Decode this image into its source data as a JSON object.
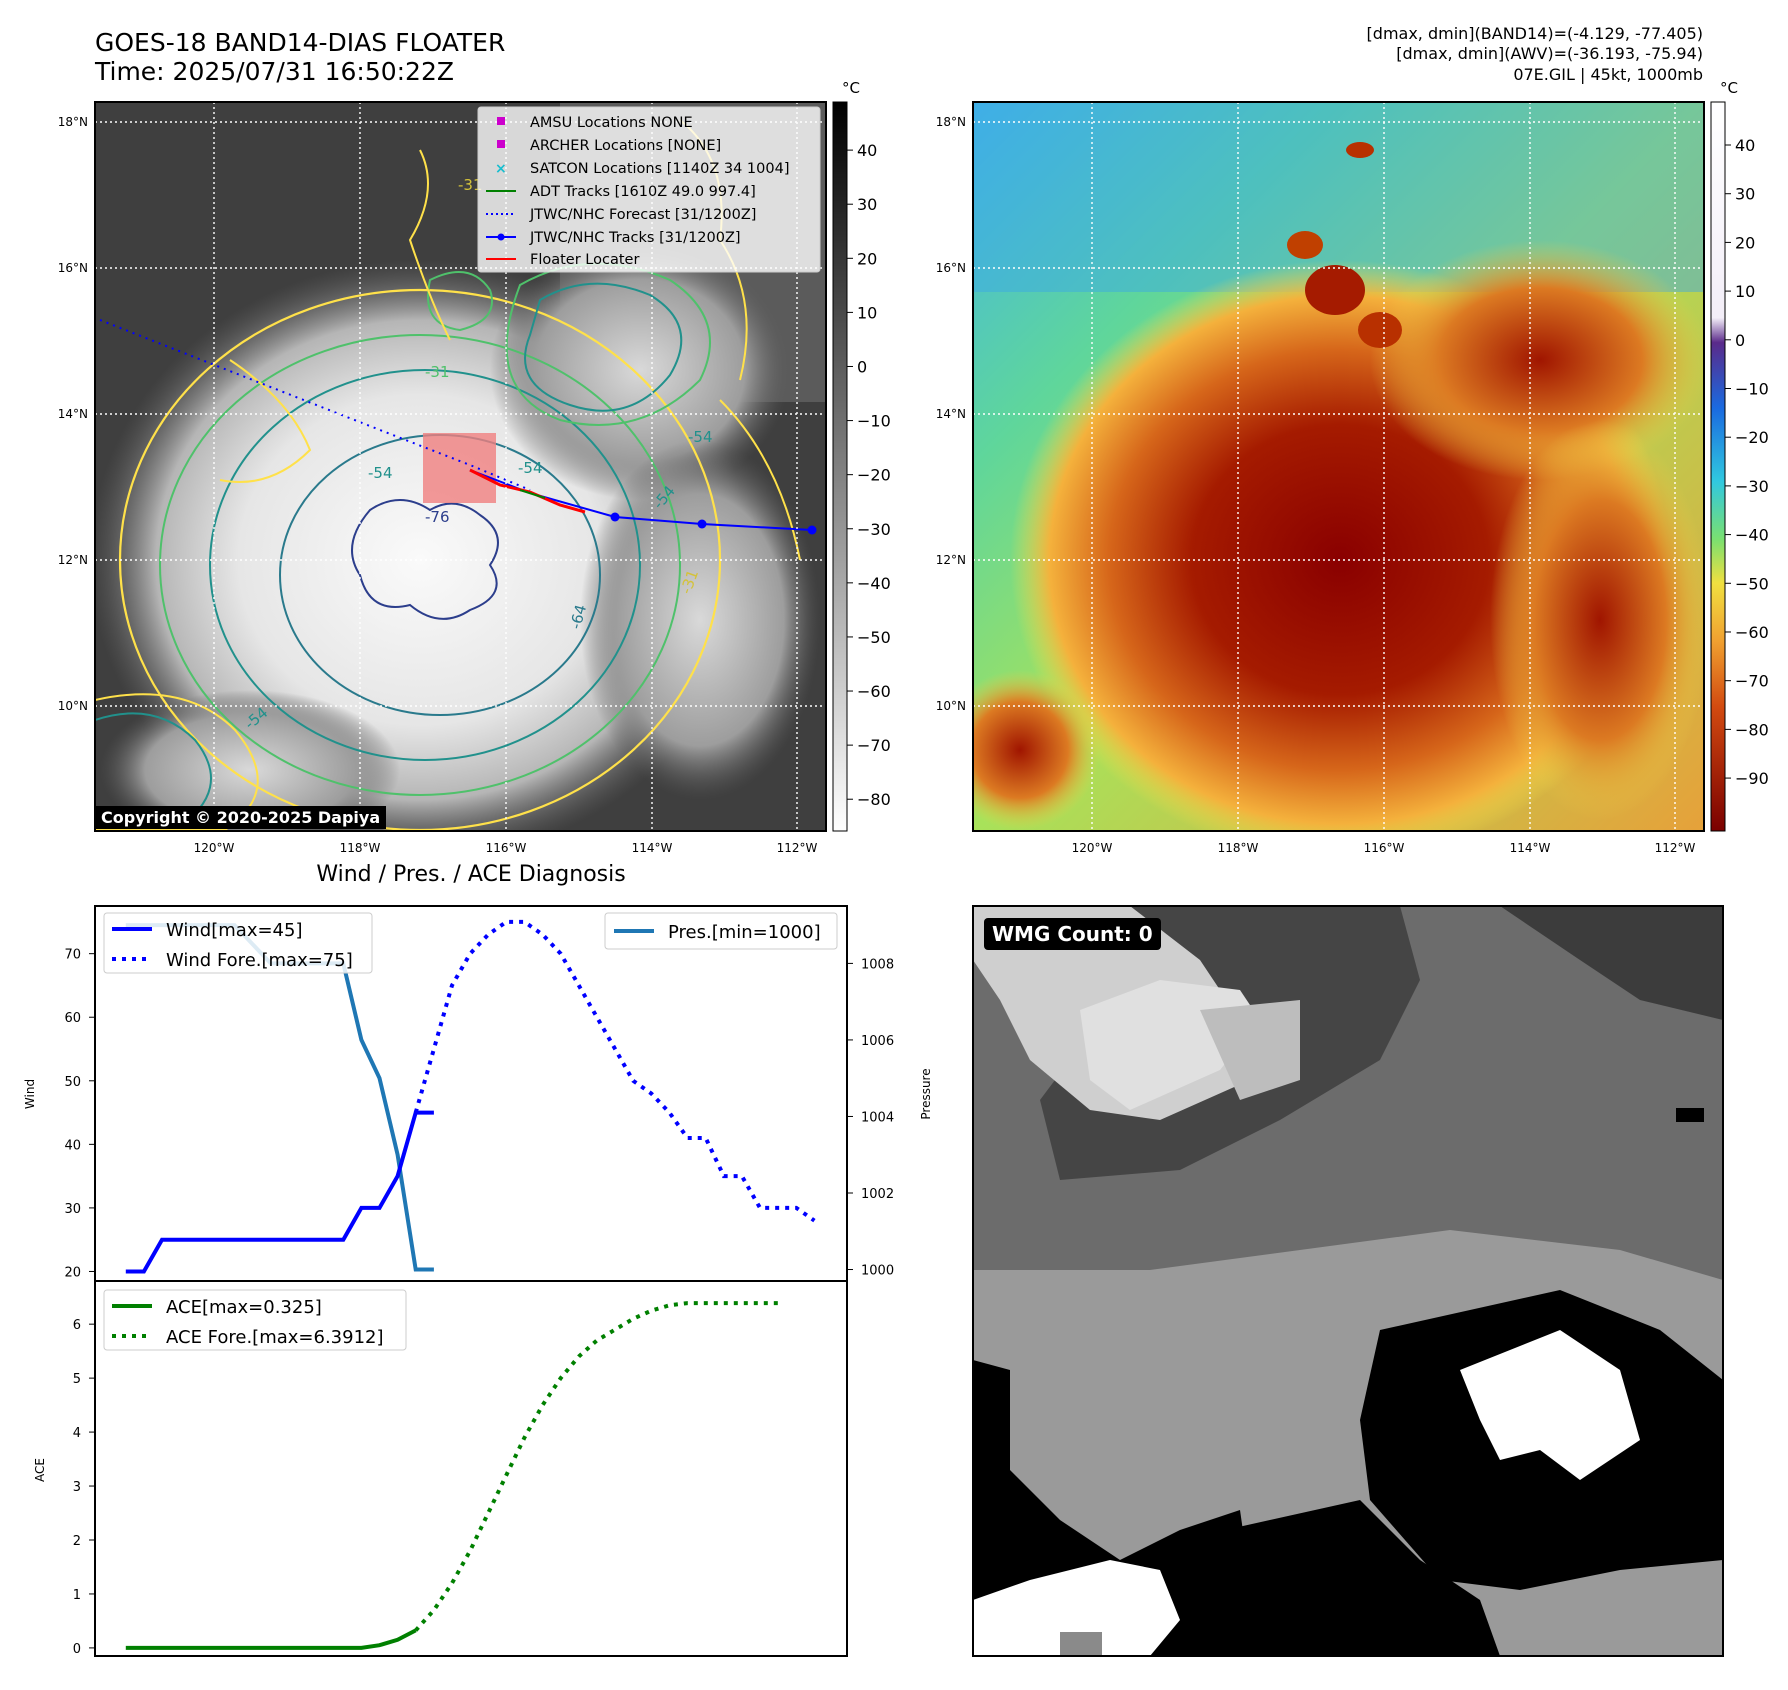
{
  "header": {
    "title_line1": "GOES-18 BAND14-DIAS FLOATER",
    "title_line2": "Time: 2025/07/31 16:50:22Z",
    "stats_line1": "[dmax, dmin](BAND14)=(-4.129, -77.405)",
    "stats_line2": "[dmax, dmin](AWV)=(-36.193, -75.94)",
    "stats_line3": "07E.GIL | 45kt, 1000mb"
  },
  "map_axes": {
    "lat_labels": [
      "18°N",
      "16°N",
      "14°N",
      "12°N",
      "10°N"
    ],
    "lon_labels": [
      "120°W",
      "118°W",
      "116°W",
      "114°W",
      "112°W"
    ]
  },
  "ir_panel": {
    "legend": [
      {
        "label": "AMSU Locations NONE",
        "marker": "square",
        "color": "#cc00cc"
      },
      {
        "label": "ARCHER Locations [NONE]",
        "marker": "square",
        "color": "#cc00cc"
      },
      {
        "label": "SATCON Locations [1140Z 34 1004]",
        "marker": "x",
        "color": "#17becf"
      },
      {
        "label": "ADT Tracks [1610Z 49.0 997.4]",
        "marker": "line",
        "color": "#008000"
      },
      {
        "label": "JTWC/NHC Forecast [31/1200Z]",
        "marker": "dotted",
        "color": "#0000ff"
      },
      {
        "label": "JTWC/NHC Tracks [31/1200Z]",
        "marker": "line-dot",
        "color": "#0000ff"
      },
      {
        "label": "Floater Locater",
        "marker": "line",
        "color": "#ff0000"
      }
    ],
    "contour_labels": [
      "-31",
      "-31",
      "-54",
      "-54",
      "-54",
      "-76",
      "-64",
      "-31",
      "-54",
      "-54"
    ],
    "copyright": "Copyright © 2020-2025 Dapiya",
    "colorbar_unit": "°C",
    "colorbar_ticks": [
      "40",
      "30",
      "20",
      "10",
      "0",
      "−10",
      "−20",
      "−30",
      "−40",
      "−50",
      "−60",
      "−70",
      "−80"
    ]
  },
  "awv_panel": {
    "colorbar_unit": "°C",
    "colorbar_ticks": [
      "40",
      "30",
      "20",
      "10",
      "0",
      "−10",
      "−20",
      "−30",
      "−40",
      "−50",
      "−60",
      "−70",
      "−80",
      "−90"
    ]
  },
  "wmg_panel": {
    "label": "WMG Count: 0"
  },
  "colors": {
    "wind": "#0000ff",
    "pressure": "#1f77b4",
    "ace": "#008000",
    "forecast_track": "#0000ff",
    "floater": "#ff0000"
  },
  "chart_data": [
    {
      "type": "line",
      "title": "Wind / Pres. / ACE Diagnosis",
      "ylabel": "Wind",
      "y2label": "Pressure",
      "ylim": [
        18.5,
        77.5
      ],
      "y2lim": [
        999.7,
        1009.5
      ],
      "yticks": [
        "20",
        "30",
        "40",
        "50",
        "60",
        "70"
      ],
      "y2ticks": [
        "1000",
        "1002",
        "1004",
        "1006",
        "1008"
      ],
      "series": [
        {
          "name": "Wind[max=45]",
          "style": "solid",
          "x": [
            0,
            1,
            2,
            3,
            4,
            5,
            6,
            7,
            8,
            9,
            10,
            11,
            12,
            13,
            14,
            15,
            16,
            17
          ],
          "values": [
            20,
            20,
            25,
            25,
            25,
            25,
            25,
            25,
            25,
            25,
            25,
            25,
            25,
            30,
            30,
            35,
            45,
            45
          ]
        },
        {
          "name": "Wind Fore.[max=75]",
          "style": "dotted",
          "x": [
            16,
            17,
            18,
            19,
            20,
            21,
            22,
            23,
            24,
            25,
            26,
            27,
            28,
            29,
            30,
            31,
            32,
            33,
            34,
            35,
            36,
            37,
            38
          ],
          "values": [
            45,
            55,
            65,
            70,
            73,
            75,
            75,
            73,
            70,
            65,
            60,
            55,
            50,
            48,
            45,
            41,
            41,
            35,
            35,
            30,
            30,
            30,
            28
          ]
        },
        {
          "name": "Pres.[min=1000]",
          "axis": "y2",
          "style": "solid",
          "x": [
            0,
            2,
            4,
            6,
            8,
            10,
            12,
            13,
            14,
            15,
            16,
            17
          ],
          "values": [
            1009.0,
            1009.0,
            1009.0,
            1009.0,
            1008.0,
            1008.0,
            1008.0,
            1006.0,
            1005.0,
            1003.0,
            1000.0,
            1000.0
          ]
        }
      ]
    },
    {
      "type": "line",
      "ylabel": "ACE",
      "ylim": [
        -0.15,
        6.8
      ],
      "yticks": [
        "0",
        "1",
        "2",
        "3",
        "4",
        "5",
        "6"
      ],
      "series": [
        {
          "name": "ACE[max=0.325]",
          "style": "solid",
          "x": [
            0,
            2,
            4,
            6,
            8,
            10,
            12,
            13,
            14,
            15,
            16
          ],
          "values": [
            0,
            0,
            0,
            0,
            0,
            0,
            0,
            0,
            0.05,
            0.15,
            0.325
          ]
        },
        {
          "name": "ACE Fore.[max=6.3912]",
          "style": "dotted",
          "x": [
            16,
            17,
            18,
            19,
            20,
            21,
            22,
            23,
            24,
            25,
            26,
            27,
            28,
            29,
            30,
            31,
            32,
            33,
            34,
            35,
            36
          ],
          "values": [
            0.325,
            0.7,
            1.2,
            1.8,
            2.5,
            3.2,
            3.9,
            4.5,
            5.0,
            5.4,
            5.7,
            5.9,
            6.1,
            6.25,
            6.35,
            6.39,
            6.39,
            6.39,
            6.39,
            6.39,
            6.39
          ]
        }
      ]
    }
  ]
}
